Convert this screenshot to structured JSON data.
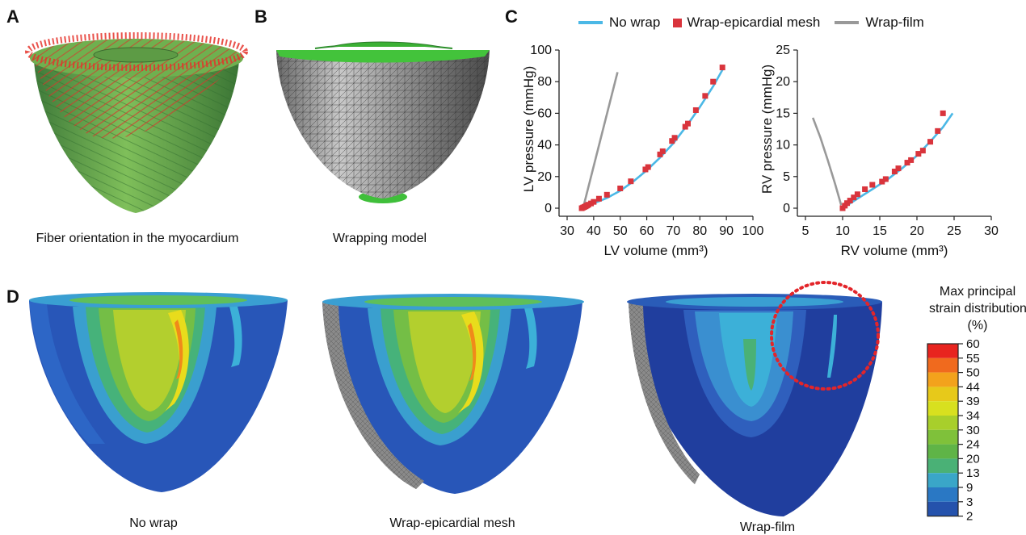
{
  "panels": {
    "A": {
      "letter": "A",
      "caption": "Fiber orientation in the myocardium"
    },
    "B": {
      "letter": "B",
      "caption": "Wrapping model"
    },
    "C": {
      "letter": "C"
    },
    "D": {
      "letter": "D",
      "captions": [
        "No wrap",
        "Wrap-epicardial mesh",
        "Wrap-film"
      ]
    }
  },
  "legend": {
    "items": [
      {
        "label": "No wrap",
        "color": "#4bb8e6",
        "marker": "line"
      },
      {
        "label": "Wrap-epicardial mesh",
        "color": "#d9343c",
        "marker": "square"
      },
      {
        "label": "Wrap-film",
        "color": "#999999",
        "marker": "line"
      }
    ]
  },
  "chart_data": [
    {
      "type": "line",
      "xlabel": "LV volume (mm³)",
      "ylabel": "LV pressure (mmHg)",
      "xlim": [
        30,
        100
      ],
      "ylim": [
        0,
        100
      ],
      "xticks": [
        "30",
        "40",
        "50",
        "60",
        "70",
        "80",
        "90",
        "100"
      ],
      "yticks": [
        "0",
        "20",
        "40",
        "60",
        "80",
        "100"
      ],
      "series": [
        {
          "name": "No wrap",
          "style": "line",
          "color": "#4bb8e6",
          "x": [
            36,
            40,
            45,
            50,
            55,
            60,
            65,
            70,
            75,
            80,
            85,
            89
          ],
          "y": [
            0,
            3,
            6.5,
            11,
            17,
            24,
            32,
            41,
            52,
            64,
            77,
            89
          ]
        },
        {
          "name": "Wrap-epicardial mesh",
          "style": "square",
          "color": "#d9343c",
          "x": [
            35.5,
            36,
            36.5,
            37,
            37.5,
            38,
            39,
            40,
            42,
            45,
            50,
            54,
            59.5,
            60.5,
            65,
            66,
            69.5,
            70.5,
            74.5,
            75.5,
            78.5,
            82,
            85,
            88.5
          ],
          "y": [
            0,
            0.4,
            0.8,
            1.2,
            1.7,
            2.2,
            3,
            4,
            6,
            8.5,
            12.5,
            17,
            24.5,
            26,
            34,
            36,
            42.5,
            44.5,
            51.5,
            53.5,
            62,
            71,
            80,
            89
          ]
        },
        {
          "name": "Wrap-film",
          "style": "line",
          "color": "#999999",
          "x": [
            36,
            49
          ],
          "y": [
            0,
            86
          ]
        }
      ]
    },
    {
      "type": "line",
      "xlabel": "RV volume (mm³)",
      "ylabel": "RV pressure (mmHg)",
      "xlim": [
        5,
        30
      ],
      "ylim": [
        0,
        25
      ],
      "xticks": [
        "5",
        "10",
        "15",
        "20",
        "25",
        "30"
      ],
      "yticks": [
        "0",
        "5",
        "10",
        "15",
        "20",
        "25"
      ],
      "series": [
        {
          "name": "No wrap",
          "style": "line",
          "color": "#4bb8e6",
          "x": [
            10,
            12,
            14,
            16,
            18,
            20,
            22,
            23.5,
            24.8
          ],
          "y": [
            0,
            1.5,
            3,
            4.5,
            6.3,
            8.3,
            10.8,
            12.8,
            15
          ]
        },
        {
          "name": "Wrap-epicardial mesh",
          "style": "square",
          "color": "#d9343c",
          "x": [
            10,
            10.3,
            10.6,
            11,
            11.5,
            12,
            13,
            14,
            15.3,
            15.8,
            17,
            17.5,
            18.7,
            19.2,
            20.2,
            20.8,
            21.8,
            22.8,
            23.5
          ],
          "y": [
            0,
            0.4,
            0.8,
            1.2,
            1.7,
            2.2,
            3,
            3.7,
            4.2,
            4.6,
            5.8,
            6.3,
            7.2,
            7.6,
            8.6,
            9.1,
            10.5,
            12.2,
            15
          ]
        },
        {
          "name": "Wrap-film",
          "style": "line",
          "color": "#999999",
          "x": [
            6,
            7,
            8,
            9,
            9.8
          ],
          "y": [
            14.3,
            11.2,
            7.6,
            3.8,
            0.5
          ]
        }
      ]
    }
  ],
  "colorbar": {
    "title_lines": [
      "Max principal",
      "strain distribution",
      "(%)"
    ],
    "labels": [
      "60",
      "55",
      "50",
      "44",
      "39",
      "34",
      "30",
      "24",
      "20",
      "13",
      "9",
      "3",
      "2"
    ],
    "colors": [
      "#e8241f",
      "#f06a1e",
      "#f3a21c",
      "#e7c91a",
      "#d8e01f",
      "#a8cf2b",
      "#7fc13a",
      "#5fb447",
      "#4ab176",
      "#3aa6c8",
      "#2a78c4",
      "#2552ac",
      "#233e98"
    ]
  },
  "strain_colors": {
    "dark_blue": "#1d3c9c",
    "blue": "#2b63c2",
    "cyan": "#3fb0d6",
    "teal": "#3a9f82",
    "green": "#6fbd44",
    "yellow": "#e3dc1d",
    "orange": "#f0a01a",
    "red": "#e8241f"
  },
  "annotation_color": "#e3252a"
}
